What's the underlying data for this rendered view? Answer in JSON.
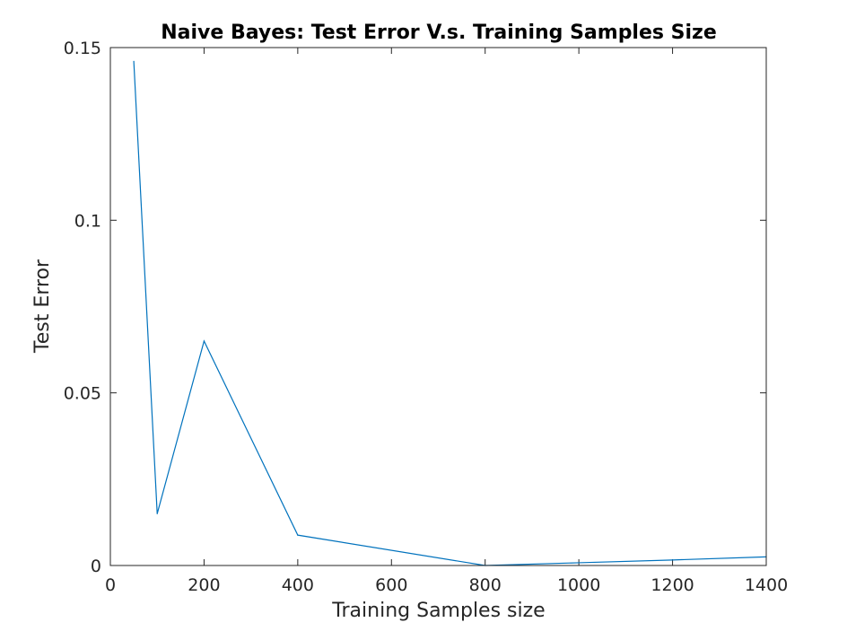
{
  "chart_data": {
    "type": "line",
    "title": "Naive Bayes: Test Error V.s. Training Samples Size",
    "xlabel": "Training Samples size",
    "ylabel": "Test Error",
    "xlim": [
      0,
      1400
    ],
    "ylim": [
      0,
      0.15
    ],
    "xticks": [
      0,
      200,
      400,
      600,
      800,
      1000,
      1200,
      1400
    ],
    "yticks": [
      0,
      0.05,
      0.1,
      0.15
    ],
    "xtick_labels": [
      "0",
      "200",
      "400",
      "600",
      "800",
      "1000",
      "1200",
      "1400"
    ],
    "ytick_labels": [
      "0",
      "0.05",
      "0.1",
      "0.15"
    ],
    "grid": false,
    "series": [
      {
        "color": "#0072bd",
        "x": [
          50,
          100,
          200,
          400,
          800,
          1000,
          1200,
          1400
        ],
        "y": [
          0.146,
          0.015,
          0.065,
          0.0088,
          0.0,
          0.0008,
          0.0016,
          0.0025
        ]
      }
    ]
  }
}
